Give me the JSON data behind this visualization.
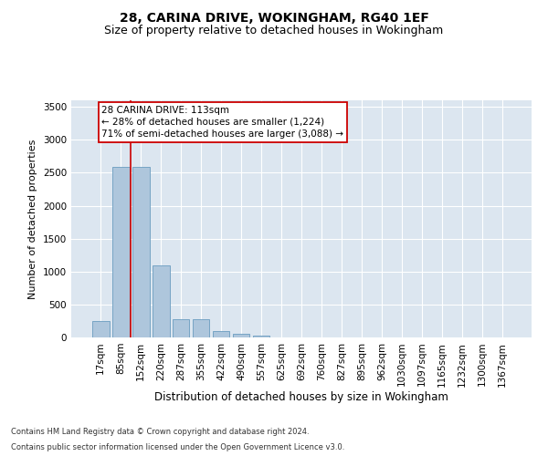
{
  "title1": "28, CARINA DRIVE, WOKINGHAM, RG40 1EF",
  "title2": "Size of property relative to detached houses in Wokingham",
  "xlabel": "Distribution of detached houses by size in Wokingham",
  "ylabel": "Number of detached properties",
  "categories": [
    "17sqm",
    "85sqm",
    "152sqm",
    "220sqm",
    "287sqm",
    "355sqm",
    "422sqm",
    "490sqm",
    "557sqm",
    "625sqm",
    "692sqm",
    "760sqm",
    "827sqm",
    "895sqm",
    "962sqm",
    "1030sqm",
    "1097sqm",
    "1165sqm",
    "1232sqm",
    "1300sqm",
    "1367sqm"
  ],
  "values": [
    250,
    2590,
    2590,
    1100,
    280,
    280,
    100,
    50,
    28,
    0,
    0,
    0,
    0,
    0,
    0,
    0,
    0,
    0,
    0,
    0,
    0
  ],
  "bar_color": "#aec6dc",
  "bar_edge_color": "#6a9cbf",
  "property_line_x": 1.5,
  "annotation_text": "28 CARINA DRIVE: 113sqm\n← 28% of detached houses are smaller (1,224)\n71% of semi-detached houses are larger (3,088) →",
  "annotation_box_color": "#ffffff",
  "annotation_box_edge": "#cc0000",
  "property_line_color": "#cc0000",
  "ylim": [
    0,
    3600
  ],
  "yticks": [
    0,
    500,
    1000,
    1500,
    2000,
    2500,
    3000,
    3500
  ],
  "background_color": "#dce6f0",
  "footnote1": "Contains HM Land Registry data © Crown copyright and database right 2024.",
  "footnote2": "Contains public sector information licensed under the Open Government Licence v3.0.",
  "title1_fontsize": 10,
  "title2_fontsize": 9,
  "xlabel_fontsize": 8.5,
  "ylabel_fontsize": 8,
  "tick_fontsize": 7.5,
  "annot_fontsize": 7.5
}
